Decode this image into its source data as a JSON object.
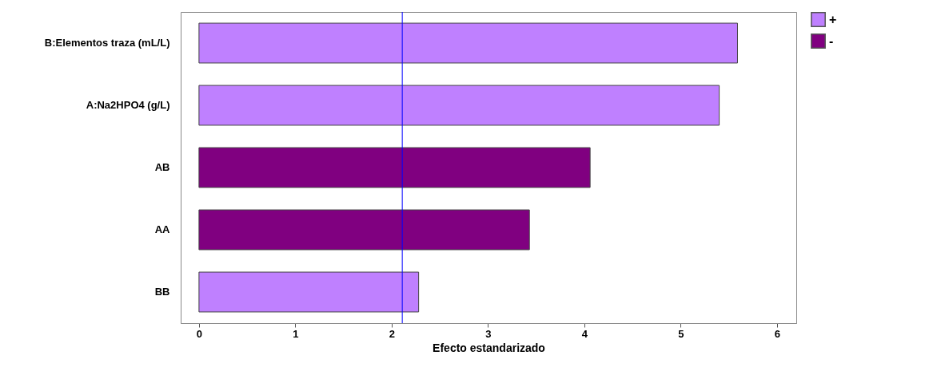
{
  "chart_data": {
    "type": "bar",
    "orientation": "horizontal",
    "xlabel": "Efecto estandarizado",
    "categories": [
      "B:Elementos traza (mL/L)",
      "A:Na2HPO4 (g/L)",
      "AB",
      "AA",
      "BB"
    ],
    "series": [
      {
        "name": "+",
        "color": "#bf80ff",
        "values": [
          5.59,
          5.4,
          null,
          null,
          2.28
        ]
      },
      {
        "name": "-",
        "color": "#800080",
        "values": [
          null,
          null,
          4.06,
          3.43,
          null
        ]
      }
    ],
    "xlim": [
      -0.19,
      6.2
    ],
    "xticks": [
      0,
      1,
      2,
      3,
      4,
      5,
      6
    ],
    "ref_lines": [
      {
        "axis": "x",
        "value": 2.11,
        "color": "#0000ff"
      }
    ],
    "grid": false,
    "legend": "top right"
  }
}
